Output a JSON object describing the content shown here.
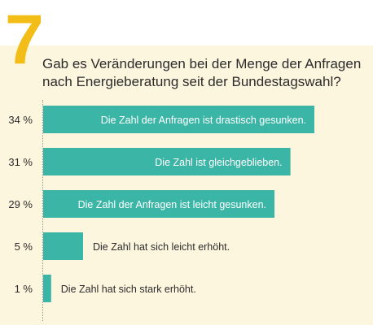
{
  "question_number": "7",
  "title_line1": "Gab es Veränderungen bei der Menge der Anfragen",
  "title_line2": "nach Energieberatung seit der Bundestagswahl?",
  "colors": {
    "bar": "#3bb5a6",
    "accent": "#f2bd17",
    "background": "#fdf6df",
    "text": "#2b2b2b",
    "label_inside": "#ffffff"
  },
  "chart_data": {
    "type": "bar",
    "orientation": "horizontal",
    "title": "Gab es Veränderungen bei der Menge der Anfragen nach Energieberatung seit der Bundestagswahl?",
    "categories": [
      "Die Zahl der Anfragen ist drastisch gesunken.",
      "Die Zahl ist gleichgeblieben.",
      "Die Zahl der Anfragen ist leicht gesunken.",
      "Die Zahl hat sich leicht erhöht.",
      "Die Zahl hat sich stark erhöht."
    ],
    "values": [
      34,
      31,
      29,
      5,
      1
    ],
    "value_labels": [
      "34 %",
      "31 %",
      "29 %",
      "5 %",
      "1 %"
    ],
    "unit": "%",
    "xlim": [
      0,
      34
    ],
    "grid": false
  }
}
